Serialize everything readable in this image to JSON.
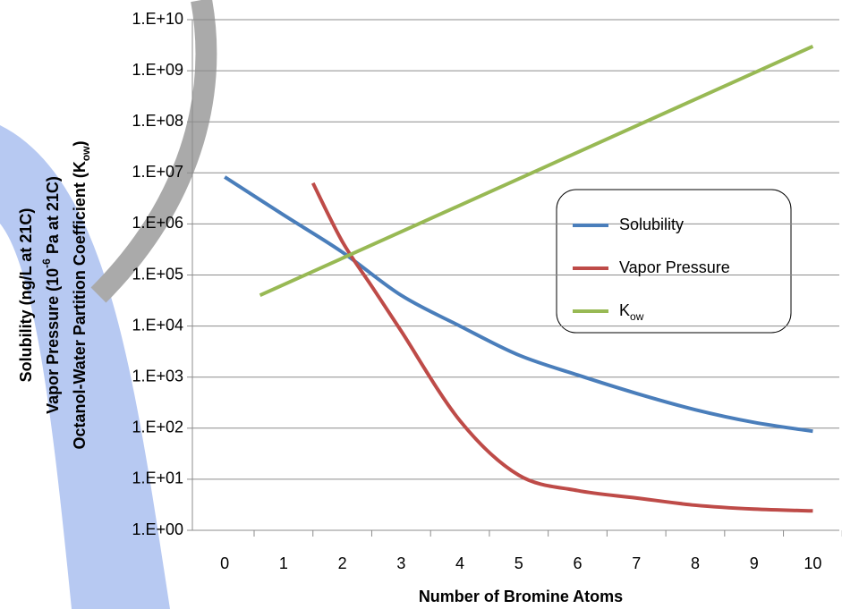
{
  "chart_data": {
    "type": "line",
    "y_label": [
      [
        "Solubility (ng/L at 21C)"
      ],
      [
        "Vapor Pressure (10",
        {
          "sup": "-6"
        },
        " Pa at 21C)"
      ],
      [
        "Octanol-Water Partition Coefficient (K",
        {
          "sub": "ow"
        },
        ")"
      ]
    ],
    "x_label": "Number of Bromine Atoms",
    "log_y": true,
    "grid": true,
    "legend": "right",
    "xlim": [
      -0.55,
      10.45
    ],
    "xticks": [
      0,
      1,
      2,
      3,
      4,
      5,
      6,
      7,
      8,
      9,
      10
    ],
    "ylim": [
      1,
      10000000000
    ],
    "yticks": [
      {
        "value": 1,
        "label": "1.E+00"
      },
      {
        "value": 10,
        "label": "1.E+01"
      },
      {
        "value": 100,
        "label": "1.E+02"
      },
      {
        "value": 1000,
        "label": "1.E+03"
      },
      {
        "value": 10000,
        "label": "1.E+04"
      },
      {
        "value": 100000,
        "label": "1.E+05"
      },
      {
        "value": 1000000,
        "label": "1.E+06"
      },
      {
        "value": 10000000,
        "label": "1.E+07"
      },
      {
        "value": 100000000,
        "label": "1.E+08"
      },
      {
        "value": 1000000000,
        "label": "1.E+09"
      },
      {
        "value": 10000000000,
        "label": "1.E+10"
      }
    ],
    "series": [
      {
        "name": "Solubility",
        "color": "#4a7ebb",
        "x": [
          0,
          1,
          2,
          3,
          4,
          5,
          6,
          7,
          8,
          9,
          10
        ],
        "values": [
          8300000,
          1500000,
          280000,
          40000,
          10000,
          2700,
          1100,
          480,
          230,
          130,
          87
        ]
      },
      {
        "name": "Vapor Pressure",
        "color": "#be4b48",
        "x": [
          1.5,
          2,
          2.5,
          3,
          4,
          5,
          6,
          7,
          8,
          9,
          10
        ],
        "values": [
          6300000,
          450000,
          60000,
          8000,
          140,
          12,
          6,
          4.3,
          3.1,
          2.6,
          2.4
        ]
      },
      {
        "name": "K",
        "name_sub": "ow",
        "color": "#98b954",
        "x": [
          0.6,
          10
        ],
        "values": [
          40000,
          3000000000
        ]
      }
    ]
  }
}
